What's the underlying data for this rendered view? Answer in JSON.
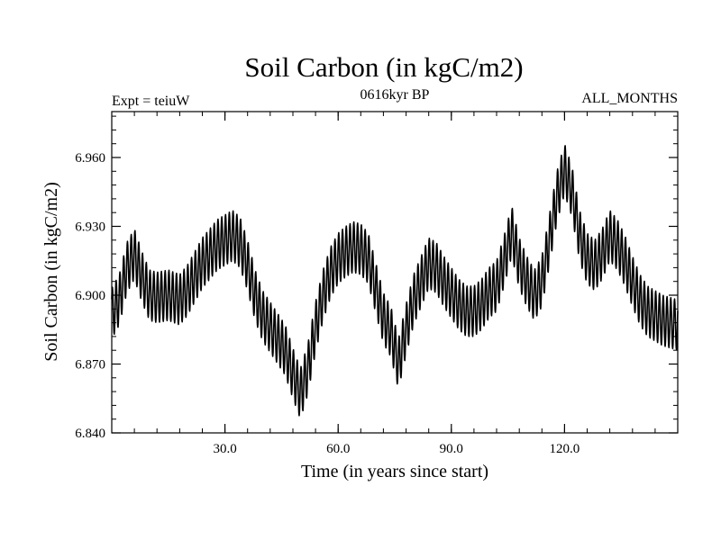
{
  "chart_data": {
    "type": "line",
    "title": "Soil Carbon (in kgC/m2)",
    "subtitle_left": "Expt = teiuW",
    "subtitle_center": "0616kyr BP",
    "subtitle_right": "ALL_MONTHS",
    "xlabel": "Time (in years since start)",
    "ylabel": "Soil Carbon (in kgC/m2)",
    "xlim": [
      0.0,
      150.0
    ],
    "ylim": [
      6.84,
      6.98
    ],
    "xticks": [
      30.0,
      60.0,
      90.0,
      120.0
    ],
    "xtick_labels": [
      "30.0",
      "60.0",
      "90.0",
      "120.0"
    ],
    "yticks": [
      6.84,
      6.87,
      6.9,
      6.93,
      6.96
    ],
    "ytick_labels": [
      "6.840",
      "6.870",
      "6.900",
      "6.930",
      "6.960"
    ],
    "grid": false,
    "series": [
      {
        "name": "Soil Carbon",
        "sampling": "monthly",
        "seasonal_amplitude": 0.011,
        "x": [
          0.0,
          2.0,
          4.0,
          6.0,
          8.0,
          10.0,
          12.0,
          15.0,
          18.0,
          20.0,
          22.0,
          24.0,
          26.0,
          28.0,
          30.0,
          32.0,
          34.0,
          36.0,
          38.0,
          40.0,
          42.0,
          44.0,
          46.0,
          48.0,
          50.0,
          52.0,
          54.0,
          56.0,
          58.0,
          60.0,
          62.0,
          64.0,
          66.0,
          68.0,
          70.0,
          72.0,
          74.0,
          76.0,
          78.0,
          80.0,
          82.0,
          84.0,
          86.0,
          88.0,
          90.0,
          92.0,
          94.0,
          96.0,
          98.0,
          100.0,
          102.0,
          104.0,
          106.0,
          108.0,
          110.0,
          112.0,
          114.0,
          116.0,
          118.0,
          120.0,
          122.0,
          124.0,
          126.0,
          128.0,
          130.0,
          132.0,
          134.0,
          136.0,
          138.0,
          140.0,
          142.0,
          144.0,
          146.0,
          148.0,
          150.0
        ],
        "y": [
          6.892,
          6.898,
          6.912,
          6.918,
          6.908,
          6.9,
          6.899,
          6.9,
          6.898,
          6.902,
          6.908,
          6.914,
          6.918,
          6.922,
          6.924,
          6.926,
          6.923,
          6.913,
          6.9,
          6.891,
          6.886,
          6.881,
          6.876,
          6.866,
          6.857,
          6.868,
          6.886,
          6.9,
          6.91,
          6.916,
          6.919,
          6.921,
          6.92,
          6.916,
          6.903,
          6.89,
          6.884,
          6.87,
          6.885,
          6.898,
          6.906,
          6.914,
          6.912,
          6.906,
          6.901,
          6.896,
          6.893,
          6.893,
          6.896,
          6.901,
          6.904,
          6.915,
          6.928,
          6.914,
          6.906,
          6.9,
          6.906,
          6.924,
          6.943,
          6.955,
          6.945,
          6.926,
          6.916,
          6.913,
          6.918,
          6.926,
          6.922,
          6.915,
          6.906,
          6.898,
          6.893,
          6.891,
          6.889,
          6.888,
          6.887
        ]
      }
    ]
  }
}
